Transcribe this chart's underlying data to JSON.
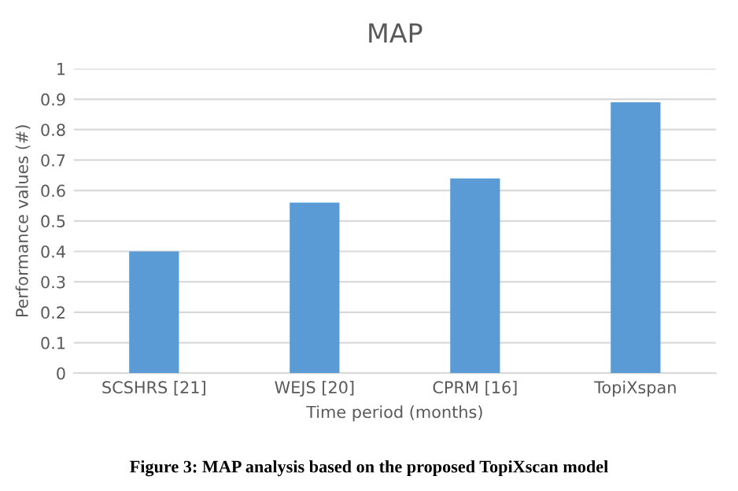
{
  "chart_data": {
    "type": "bar",
    "title": "MAP",
    "xlabel": "Time period (months)",
    "ylabel": "Performance values (#)",
    "categories": [
      "SCSHRS [21]",
      "WEJS [20]",
      "CPRM [16]",
      "TopiXspan"
    ],
    "values": [
      0.4,
      0.56,
      0.64,
      0.89
    ],
    "color": "#5b9bd5",
    "ylim": [
      0,
      1
    ],
    "yticks": [
      0,
      0.1,
      0.2,
      0.3,
      0.4,
      0.5,
      0.6,
      0.7,
      0.8,
      0.9,
      1
    ],
    "grid": "y",
    "annotations": [
      "Figure 3: MAP analysis based on the proposed TopiXscan model"
    ]
  }
}
